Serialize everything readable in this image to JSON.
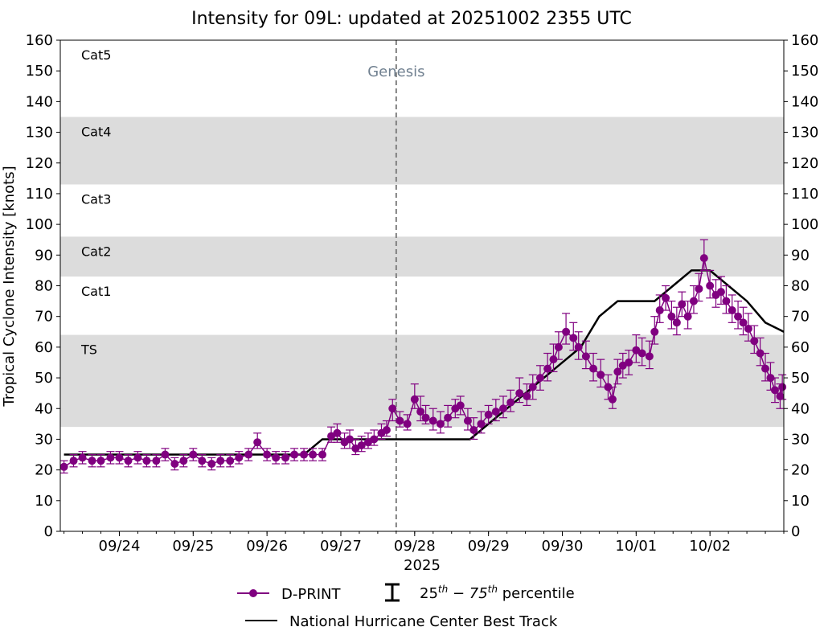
{
  "chart_data": {
    "type": "line",
    "title": "Intensity for 09L: updated at 20251002 2355 UTC",
    "xlabel": "2025",
    "ylabel": "Tropical Cyclone Intensity [knots]",
    "ylim": [
      0,
      160
    ],
    "yticks": [
      0,
      10,
      20,
      30,
      40,
      50,
      60,
      70,
      80,
      90,
      100,
      110,
      120,
      130,
      140,
      150,
      160
    ],
    "xlim_days": [
      -0.8,
      9.0
    ],
    "x_origin_note": "x values are days since 2025-09-24 00:00 UTC",
    "xticks": [
      {
        "day": 0,
        "label": "09/24"
      },
      {
        "day": 1,
        "label": "09/25"
      },
      {
        "day": 2,
        "label": "09/26"
      },
      {
        "day": 3,
        "label": "09/27"
      },
      {
        "day": 4,
        "label": "09/28"
      },
      {
        "day": 5,
        "label": "09/29"
      },
      {
        "day": 6,
        "label": "09/30"
      },
      {
        "day": 7,
        "label": "10/01"
      },
      {
        "day": 8,
        "label": "10/02"
      }
    ],
    "bands": [
      {
        "from": 34,
        "to": 64,
        "label": "TS",
        "shaded": true
      },
      {
        "from": 64,
        "to": 83,
        "label": "Cat1",
        "shaded": false
      },
      {
        "from": 83,
        "to": 96,
        "label": "Cat2",
        "shaded": true
      },
      {
        "from": 96,
        "to": 113,
        "label": "Cat3",
        "shaded": false
      },
      {
        "from": 113,
        "to": 135,
        "label": "Cat4",
        "shaded": true
      },
      {
        "from": 135,
        "to": 160,
        "label": "Cat5",
        "shaded": false
      }
    ],
    "genesis": {
      "day": 3.75,
      "label": "Genesis"
    },
    "series": [
      {
        "name": "D-PRINT",
        "color": "#800080",
        "points": [
          [
            -0.75,
            21,
            19,
            23
          ],
          [
            -0.62,
            23,
            21,
            25
          ],
          [
            -0.5,
            24,
            22,
            26
          ],
          [
            -0.37,
            23,
            21,
            25
          ],
          [
            -0.25,
            23,
            21,
            25
          ],
          [
            -0.12,
            24,
            22,
            26
          ],
          [
            0.0,
            24,
            22,
            26
          ],
          [
            0.12,
            23,
            21,
            25
          ],
          [
            0.25,
            24,
            22,
            26
          ],
          [
            0.37,
            23,
            21,
            25
          ],
          [
            0.5,
            23,
            21,
            25
          ],
          [
            0.62,
            25,
            23,
            27
          ],
          [
            0.75,
            22,
            20,
            24
          ],
          [
            0.87,
            23,
            21,
            25
          ],
          [
            1.0,
            25,
            23,
            27
          ],
          [
            1.12,
            23,
            21,
            25
          ],
          [
            1.25,
            22,
            20,
            24
          ],
          [
            1.37,
            23,
            21,
            25
          ],
          [
            1.5,
            23,
            21,
            25
          ],
          [
            1.62,
            24,
            22,
            26
          ],
          [
            1.75,
            25,
            23,
            27
          ],
          [
            1.87,
            29,
            27,
            32
          ],
          [
            2.0,
            25,
            23,
            27
          ],
          [
            2.12,
            24,
            22,
            26
          ],
          [
            2.25,
            24,
            22,
            26
          ],
          [
            2.37,
            25,
            23,
            27
          ],
          [
            2.5,
            25,
            23,
            27
          ],
          [
            2.62,
            25,
            23,
            27
          ],
          [
            2.75,
            25,
            23,
            27
          ],
          [
            2.87,
            31,
            29,
            34
          ],
          [
            2.95,
            32,
            29,
            35
          ],
          [
            3.05,
            29,
            27,
            32
          ],
          [
            3.12,
            30,
            27,
            33
          ],
          [
            3.2,
            27,
            25,
            30
          ],
          [
            3.28,
            28,
            26,
            31
          ],
          [
            3.37,
            29,
            27,
            32
          ],
          [
            3.45,
            30,
            28,
            33
          ],
          [
            3.55,
            32,
            30,
            35
          ],
          [
            3.62,
            33,
            31,
            36
          ],
          [
            3.7,
            40,
            36,
            43
          ],
          [
            3.8,
            36,
            34,
            39
          ],
          [
            3.9,
            35,
            33,
            38
          ],
          [
            4.0,
            43,
            40,
            48
          ],
          [
            4.08,
            39,
            36,
            44
          ],
          [
            4.15,
            37,
            35,
            41
          ],
          [
            4.25,
            36,
            33,
            40
          ],
          [
            4.35,
            35,
            32,
            39
          ],
          [
            4.45,
            37,
            34,
            41
          ],
          [
            4.55,
            40,
            37,
            43
          ],
          [
            4.62,
            41,
            38,
            44
          ],
          [
            4.72,
            36,
            33,
            40
          ],
          [
            4.8,
            33,
            30,
            37
          ],
          [
            4.9,
            35,
            32,
            39
          ],
          [
            5.0,
            38,
            35,
            41
          ],
          [
            5.1,
            39,
            36,
            43
          ],
          [
            5.2,
            40,
            37,
            44
          ],
          [
            5.3,
            42,
            39,
            46
          ],
          [
            5.42,
            45,
            42,
            50
          ],
          [
            5.52,
            44,
            41,
            48
          ],
          [
            5.6,
            47,
            43,
            51
          ],
          [
            5.7,
            50,
            46,
            54
          ],
          [
            5.8,
            53,
            49,
            58
          ],
          [
            5.88,
            56,
            52,
            61
          ],
          [
            5.95,
            60,
            56,
            65
          ],
          [
            6.05,
            65,
            61,
            71
          ],
          [
            6.15,
            63,
            59,
            68
          ],
          [
            6.22,
            60,
            56,
            65
          ],
          [
            6.32,
            57,
            53,
            62
          ],
          [
            6.42,
            53,
            49,
            58
          ],
          [
            6.52,
            51,
            47,
            56
          ],
          [
            6.62,
            47,
            43,
            51
          ],
          [
            6.68,
            43,
            40,
            47
          ],
          [
            6.75,
            52,
            48,
            56
          ],
          [
            6.82,
            54,
            50,
            58
          ],
          [
            6.9,
            55,
            51,
            59
          ],
          [
            7.0,
            59,
            55,
            64
          ],
          [
            7.08,
            58,
            54,
            63
          ],
          [
            7.18,
            57,
            53,
            62
          ],
          [
            7.25,
            65,
            61,
            70
          ],
          [
            7.32,
            72,
            68,
            77
          ],
          [
            7.4,
            76,
            72,
            80
          ],
          [
            7.48,
            70,
            66,
            75
          ],
          [
            7.55,
            68,
            64,
            73
          ],
          [
            7.62,
            74,
            70,
            78
          ],
          [
            7.7,
            70,
            66,
            75
          ],
          [
            7.78,
            75,
            71,
            80
          ],
          [
            7.85,
            79,
            75,
            84
          ],
          [
            7.92,
            89,
            85,
            95
          ],
          [
            8.0,
            80,
            76,
            85
          ],
          [
            8.08,
            77,
            73,
            82
          ],
          [
            8.15,
            78,
            74,
            83
          ],
          [
            8.22,
            75,
            71,
            80
          ],
          [
            8.3,
            72,
            68,
            77
          ],
          [
            8.38,
            70,
            66,
            75
          ],
          [
            8.45,
            68,
            64,
            73
          ],
          [
            8.52,
            66,
            62,
            71
          ],
          [
            8.6,
            62,
            58,
            67
          ],
          [
            8.68,
            58,
            54,
            63
          ],
          [
            8.75,
            53,
            49,
            58
          ],
          [
            8.82,
            50,
            46,
            55
          ],
          [
            8.88,
            46,
            42,
            50
          ],
          [
            8.95,
            44,
            40,
            48
          ],
          [
            8.98,
            47,
            43,
            51
          ]
        ]
      },
      {
        "name": "National Hurricane Center Best Track",
        "color": "#000000",
        "points": [
          [
            -0.75,
            25
          ],
          [
            2.5,
            25
          ],
          [
            2.75,
            30
          ],
          [
            4.0,
            30
          ],
          [
            4.75,
            30
          ],
          [
            5.0,
            35
          ],
          [
            5.5,
            45
          ],
          [
            6.0,
            55
          ],
          [
            6.25,
            60
          ],
          [
            6.5,
            70
          ],
          [
            6.75,
            75
          ],
          [
            7.25,
            75
          ],
          [
            7.5,
            80
          ],
          [
            7.75,
            85
          ],
          [
            8.0,
            85
          ],
          [
            8.25,
            80
          ],
          [
            8.5,
            75
          ],
          [
            8.75,
            68
          ],
          [
            9.0,
            65
          ]
        ]
      }
    ],
    "legend": {
      "position": "bottom-center",
      "dprint": "D-PRINT",
      "pct_prefix": "25",
      "pct_sup1": "th",
      "pct_mid": " − 75",
      "pct_sup2": "th",
      "pct_suffix": " percentile",
      "best_track": "National Hurricane Center Best Track"
    }
  }
}
